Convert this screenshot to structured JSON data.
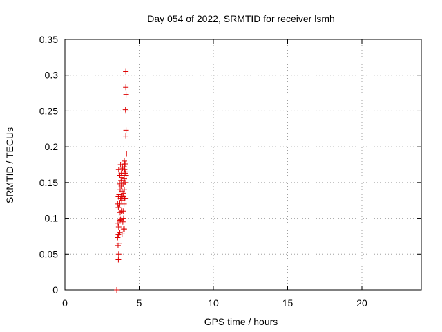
{
  "chart_data": {
    "type": "scatter",
    "title": "Day 054 of 2022, SRMTID for receiver lsmh",
    "xlabel": "GPS time / hours",
    "ylabel": "SRMTID / TECUs",
    "xlim": [
      0,
      24
    ],
    "ylim": [
      0,
      0.35
    ],
    "xticks": [
      0,
      5,
      10,
      15,
      20
    ],
    "yticks": [
      0,
      0.05,
      0.1,
      0.15,
      0.2,
      0.25,
      0.3,
      0.35
    ],
    "grid": true,
    "marker": "+",
    "color": "#dd0000",
    "points": [
      [
        3.5,
        0.0
      ],
      [
        3.5,
        0.0
      ],
      [
        3.5,
        0.0
      ],
      [
        3.6,
        0.042
      ],
      [
        3.62,
        0.05
      ],
      [
        3.58,
        0.062
      ],
      [
        3.65,
        0.065
      ],
      [
        3.55,
        0.073
      ],
      [
        3.6,
        0.077
      ],
      [
        3.7,
        0.08
      ],
      [
        3.62,
        0.088
      ],
      [
        3.58,
        0.093
      ],
      [
        3.68,
        0.097
      ],
      [
        3.75,
        0.098
      ],
      [
        3.65,
        0.103
      ],
      [
        3.72,
        0.108
      ],
      [
        3.8,
        0.11
      ],
      [
        3.6,
        0.115
      ],
      [
        3.7,
        0.12
      ],
      [
        3.55,
        0.12
      ],
      [
        3.82,
        0.125
      ],
      [
        3.75,
        0.128
      ],
      [
        3.8,
        0.13
      ],
      [
        3.65,
        0.133
      ],
      [
        3.85,
        0.138
      ],
      [
        3.72,
        0.14
      ],
      [
        3.8,
        0.145
      ],
      [
        3.68,
        0.148
      ],
      [
        3.78,
        0.153
      ],
      [
        3.83,
        0.157
      ],
      [
        3.7,
        0.16
      ],
      [
        3.8,
        0.163
      ],
      [
        3.62,
        0.168
      ],
      [
        3.88,
        0.17
      ],
      [
        3.75,
        0.175
      ],
      [
        3.6,
        0.13
      ],
      [
        3.9,
        0.13
      ],
      [
        3.95,
        0.085
      ],
      [
        4.0,
        0.085
      ],
      [
        3.95,
        0.1
      ],
      [
        3.92,
        0.11
      ],
      [
        3.98,
        0.12
      ],
      [
        4.02,
        0.128
      ],
      [
        3.95,
        0.135
      ],
      [
        4.0,
        0.14
      ],
      [
        3.95,
        0.148
      ],
      [
        4.05,
        0.15
      ],
      [
        4.0,
        0.155
      ],
      [
        3.98,
        0.16
      ],
      [
        4.05,
        0.163
      ],
      [
        4.1,
        0.165
      ],
      [
        4.02,
        0.168
      ],
      [
        4.0,
        0.172
      ],
      [
        4.05,
        0.176
      ],
      [
        4.0,
        0.18
      ],
      [
        4.1,
        0.128
      ],
      [
        4.12,
        0.16
      ],
      [
        4.15,
        0.19
      ],
      [
        4.1,
        0.215
      ],
      [
        4.12,
        0.223
      ],
      [
        4.1,
        0.25
      ],
      [
        4.08,
        0.252
      ],
      [
        4.12,
        0.273
      ],
      [
        4.1,
        0.283
      ],
      [
        4.1,
        0.305
      ],
      [
        3.9,
        0.095
      ],
      [
        3.85,
        0.078
      ]
    ]
  }
}
